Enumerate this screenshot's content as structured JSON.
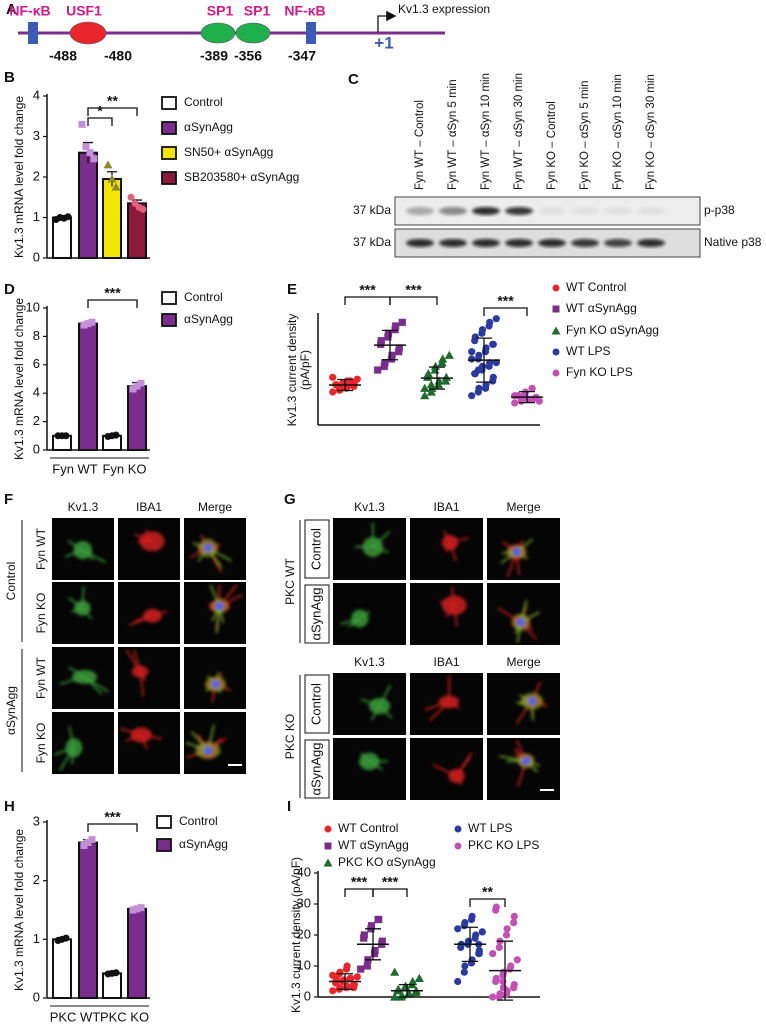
{
  "promoter": {
    "label": "A",
    "elements": [
      {
        "name": "NF-κB",
        "position": -488
      },
      {
        "name": "USF1",
        "position": -480
      },
      {
        "name": "SP1",
        "position": -389
      },
      {
        "name": "SP1",
        "position": -356
      },
      {
        "name": "NF-κB",
        "position": -347
      }
    ],
    "start": "+1",
    "output": "Kv1.3 expression"
  },
  "blot": {
    "label": "C",
    "lanes": [
      "Fyn WT – Control",
      "Fyn WT – αSyn 5 min",
      "Fyn WT – αSyn 10 min",
      "Fyn WT – αSyn 30 min",
      "Fyn KO – Control",
      "Fyn KO – αSyn 5 min",
      "Fyn KO – αSyn 10 min",
      "Fyn KO – αSyn 30 min"
    ],
    "rows": [
      {
        "size": "37 kDa",
        "name": "p-p38"
      },
      {
        "size": "37 kDa",
        "name": "Native p38"
      }
    ]
  },
  "microscopy_f": {
    "label": "F",
    "columns": [
      "Kv1.3",
      "IBA1",
      "Merge"
    ],
    "groups": [
      {
        "name": "Control",
        "rows": [
          "Fyn WT",
          "Fyn KO"
        ]
      },
      {
        "name": "αSynAgg",
        "rows": [
          "Fyn WT",
          "Fyn KO"
        ]
      }
    ]
  },
  "microscopy_g": {
    "label": "G",
    "groups": [
      {
        "name": "PKC WT",
        "columns": [
          "Kv1.3",
          "IBA1",
          "Merge"
        ],
        "rows": [
          "Control",
          "αSynAgg"
        ]
      },
      {
        "name": "PKC KO",
        "columns": [
          "Kv1.3",
          "IBA1",
          "Merge"
        ],
        "rows": [
          "Control",
          "αSynAgg"
        ]
      }
    ]
  },
  "chart_data": [
    {
      "label": "B",
      "type": "bar",
      "ylabel": "Kv1.3 mRNA level fold change",
      "categories": [
        null
      ],
      "series": [
        {
          "name": "Control",
          "color": "#ffffff",
          "point_color": "#111111",
          "marker": "circle",
          "values": [
            1.0
          ],
          "errors": [
            0.03
          ],
          "points": [
            [
              0.95,
              1.0,
              0.98,
              1.02
            ]
          ]
        },
        {
          "name": "αSynAgg",
          "color": "#7b2d8e",
          "point_color": "#c48fd8",
          "marker": "square",
          "values": [
            2.6
          ],
          "errors": [
            0.25
          ],
          "points": [
            [
              3.3,
              2.75,
              2.6,
              2.45
            ]
          ]
        },
        {
          "name": "SN50+ αSynAgg",
          "color": "#f2e600",
          "point_color": "#8c8a2b",
          "marker": "triangle",
          "values": [
            1.95
          ],
          "errors": [
            0.18
          ],
          "points": [
            [
              2.3,
              1.95,
              1.75
            ]
          ]
        },
        {
          "name": "SB203580+ αSynAgg",
          "color": "#8b1a3a",
          "point_color": "#e0607e",
          "marker": "circle",
          "values": [
            1.35
          ],
          "errors": [
            0.08
          ],
          "points": [
            [
              1.5,
              1.35,
              1.25,
              1.2
            ]
          ]
        }
      ],
      "ylim": [
        0,
        4
      ],
      "yticks": [
        0,
        1,
        2,
        3,
        4
      ],
      "significance": [
        {
          "label": "*",
          "between": [
            [
              0,
              1
            ],
            [
              0,
              2
            ]
          ]
        },
        {
          "label": "**",
          "between": [
            [
              0,
              1
            ],
            [
              0,
              3
            ]
          ]
        }
      ]
    },
    {
      "label": "D",
      "type": "bar",
      "ylabel": "Kv1.3 mRNA level fold change",
      "categories": [
        "Fyn WT",
        "Fyn KO"
      ],
      "series": [
        {
          "name": "Control",
          "color": "#ffffff",
          "point_color": "#111111",
          "marker": "circle",
          "values": [
            1.0,
            1.0
          ],
          "errors": [
            0.03,
            0.05
          ],
          "points": [
            [
              1.0,
              1.0,
              1.0
            ],
            [
              0.95,
              1.0,
              1.05
            ]
          ]
        },
        {
          "name": "αSynAgg",
          "color": "#7b2d8e",
          "point_color": "#c48fd8",
          "marker": "square",
          "values": [
            8.9,
            4.5
          ],
          "errors": [
            0.1,
            0.25
          ],
          "points": [
            [
              8.8,
              8.9,
              9.0
            ],
            [
              4.3,
              4.5,
              4.7
            ]
          ]
        }
      ],
      "ylim": [
        0,
        10
      ],
      "yticks": [
        0,
        2,
        4,
        6,
        8,
        10
      ],
      "significance": [
        {
          "label": "***",
          "between": [
            [
              0,
              1
            ],
            [
              1,
              1
            ]
          ]
        }
      ]
    },
    {
      "label": "E",
      "type": "dotplot",
      "ylabel": [
        "Kv1.3 current density",
        "(pA/pF)"
      ],
      "series": [
        {
          "name": "WT Control",
          "color": "#e8262b",
          "marker": "circle",
          "mean": 10.9,
          "sd": 1.5,
          "values": [
            9,
            9.5,
            10,
            10,
            10.5,
            10.5,
            11,
            11,
            11,
            11.5,
            11.5,
            12,
            12,
            12.5,
            13,
            10,
            9.5,
            11,
            12,
            10.5
          ]
        },
        {
          "name": "WT αSynAgg",
          "color": "#7b2d8e",
          "marker": "square",
          "mean": 21.8,
          "sd": 4,
          "values": [
            15,
            16,
            17,
            18,
            19,
            20,
            21,
            22,
            23,
            24,
            25,
            26,
            27,
            28
          ]
        },
        {
          "name": "Fyn KO αSynAgg",
          "color": "#1e6b2e",
          "marker": "triangle",
          "mean": 12.8,
          "sd": 3,
          "values": [
            8,
            9,
            10,
            11,
            12,
            12,
            13,
            13,
            14,
            15,
            16,
            17,
            18,
            19,
            10,
            11
          ]
        },
        {
          "name": "WT LPS",
          "color": "#2b3a9e",
          "marker": "circle",
          "mean": 17.7,
          "sd": 6,
          "values": [
            8,
            9,
            10,
            10,
            11,
            12,
            13,
            14,
            14,
            15,
            16,
            16,
            17,
            17,
            18,
            18,
            19,
            20,
            21,
            22,
            22,
            23,
            24,
            25,
            26,
            27,
            28,
            29,
            20,
            15
          ]
        },
        {
          "name": "Fyn KO LPS",
          "color": "#c44fb5",
          "marker": "circle",
          "mean": 7.6,
          "sd": 1.5,
          "values": [
            6,
            6.5,
            7,
            7,
            7,
            7.5,
            7.5,
            8,
            8,
            8.5,
            9,
            10,
            7,
            6.5,
            8
          ]
        }
      ],
      "ylim": [
        0,
        30
      ],
      "significance": [
        {
          "label": "***",
          "between": [
            0,
            1
          ]
        },
        {
          "label": "***",
          "between": [
            1,
            2
          ]
        },
        {
          "label": "***",
          "between": [
            3,
            4
          ]
        }
      ]
    },
    {
      "label": "H",
      "type": "bar",
      "ylabel": "Kv1.3 mRNA level fold change",
      "categories": [
        "PKC WT",
        "PKC KO"
      ],
      "series": [
        {
          "name": "Control",
          "color": "#ffffff",
          "point_color": "#111111",
          "marker": "circle",
          "values": [
            1.0,
            0.42
          ],
          "errors": [
            0.03,
            0.01
          ],
          "points": [
            [
              0.98,
              1.0,
              1.02
            ],
            [
              0.41,
              0.42,
              0.43
            ]
          ]
        },
        {
          "name": "αSynAgg",
          "color": "#7b2d8e",
          "point_color": "#c48fd8",
          "marker": "square",
          "values": [
            2.65,
            1.52
          ],
          "errors": [
            0.05,
            0.03
          ],
          "points": [
            [
              2.6,
              2.65,
              2.7
            ],
            [
              1.5,
              1.52,
              1.54
            ]
          ]
        }
      ],
      "ylim": [
        0,
        3
      ],
      "yticks": [
        0,
        1,
        2,
        3
      ],
      "significance": [
        {
          "label": "***",
          "between": [
            [
              0,
              1
            ],
            [
              1,
              1
            ]
          ]
        }
      ]
    },
    {
      "label": "I",
      "type": "dotplot",
      "ylabel": [
        "Kv1.3 current density (pA/pF)"
      ],
      "series": [
        {
          "name": "WT Control",
          "color": "#e8262b",
          "marker": "circle",
          "mean": 5,
          "sd": 2.5,
          "values": [
            2,
            2.5,
            3,
            3,
            3.5,
            4,
            4,
            4.5,
            5,
            5,
            5.5,
            6,
            6,
            6.5,
            7,
            7.5,
            8,
            9,
            10,
            3,
            4,
            5,
            6
          ]
        },
        {
          "name": "WT αSynAgg",
          "color": "#7b2d8e",
          "marker": "square",
          "mean": 17,
          "sd": 5,
          "values": [
            9,
            10,
            12,
            14,
            15,
            17,
            18,
            19,
            20,
            22,
            23,
            25,
            25
          ]
        },
        {
          "name": "PKC KO αSynAgg",
          "color": "#1e6b2e",
          "marker": "triangle",
          "mean": 2,
          "sd": 2,
          "values": [
            0,
            0,
            0.5,
            1,
            1,
            1.5,
            2,
            2,
            2.5,
            3,
            3.5,
            4,
            5,
            6,
            8
          ]
        },
        {
          "name": "WT LPS",
          "color": "#2b3a9e",
          "marker": "circle",
          "mean": 17,
          "sd": 5.5,
          "values": [
            5,
            8,
            10,
            11,
            12,
            14,
            15,
            16,
            17,
            17,
            18,
            19,
            20,
            21,
            22,
            23,
            24,
            25,
            26,
            17,
            14
          ]
        },
        {
          "name": "PKC KO LPS",
          "color": "#c44fb5",
          "marker": "circle",
          "mean": 8.5,
          "sd": 9.5,
          "values": [
            0,
            0,
            1,
            1,
            2,
            3,
            4,
            5,
            6,
            7,
            8,
            9,
            10,
            12,
            14,
            16,
            18,
            20,
            22,
            24,
            26,
            28,
            29,
            5,
            3
          ]
        }
      ],
      "ylim": [
        0,
        40
      ],
      "yticks": [
        0,
        10,
        20,
        30,
        40
      ],
      "significance": [
        {
          "label": "***",
          "between": [
            0,
            1
          ]
        },
        {
          "label": "***",
          "between": [
            1,
            2
          ]
        },
        {
          "label": "**",
          "between": [
            3,
            4
          ]
        }
      ]
    }
  ]
}
